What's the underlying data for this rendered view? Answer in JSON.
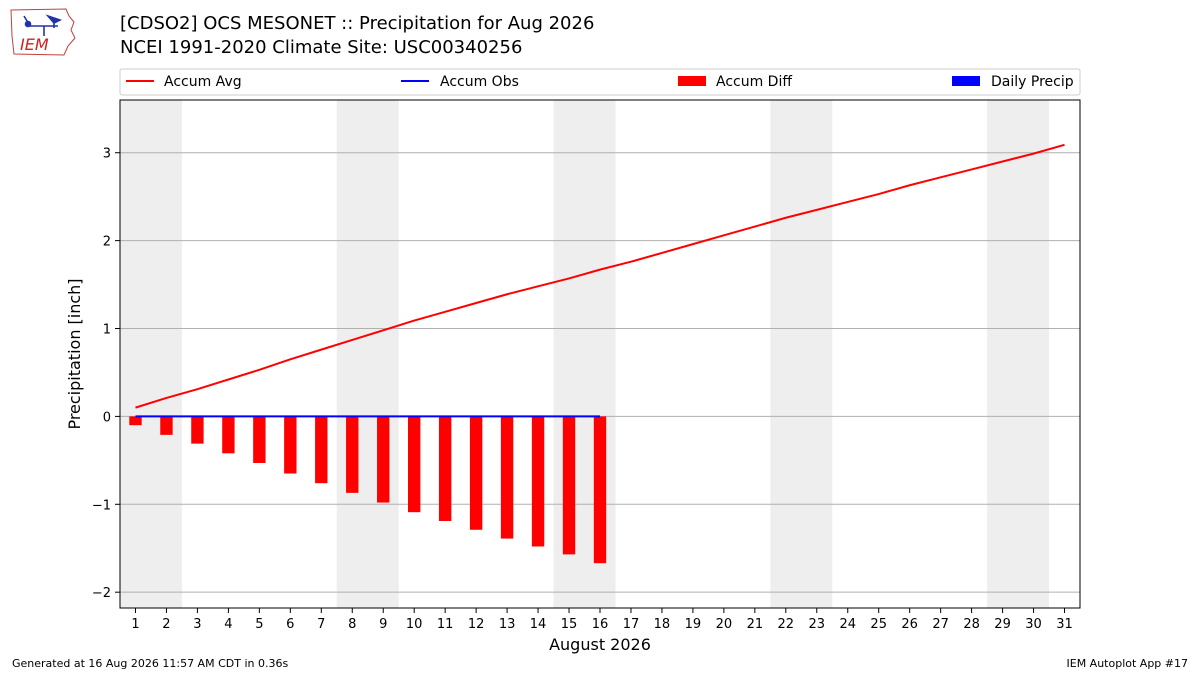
{
  "header": {
    "logo_text": "IEM",
    "title_line1": "[CDSO2] OCS MESONET :: Precipitation for Aug 2026",
    "title_line2": "NCEI 1991-2020 Climate Site: USC00340256"
  },
  "footer": {
    "generated": "Generated at 16 Aug 2026 11:57 AM CDT in 0.36s",
    "app": "IEM Autoplot App #17"
  },
  "colors": {
    "accum_avg": "#ff0000",
    "accum_obs": "#0000ff",
    "accum_diff": "#ff0000",
    "daily_precip": "#0000ff",
    "weekend_band": "#eeeeee",
    "grid": "#b0b0b0"
  },
  "chart_data": {
    "type": "bar",
    "xlabel": "August 2026",
    "ylabel": "Precipitation [inch]",
    "xlim": [
      0.5,
      31.5
    ],
    "ylim": [
      -2.18,
      3.6
    ],
    "x_ticks": [
      1,
      2,
      3,
      4,
      5,
      6,
      7,
      8,
      9,
      10,
      11,
      12,
      13,
      14,
      15,
      16,
      17,
      18,
      19,
      20,
      21,
      22,
      23,
      24,
      25,
      26,
      27,
      28,
      29,
      30,
      31
    ],
    "y_ticks": [
      -2,
      -1,
      0,
      1,
      2,
      3
    ],
    "y_tick_labels": [
      "−2",
      "−1",
      "0",
      "1",
      "2",
      "3"
    ],
    "grid": "horizontal",
    "legend_position": "top, above plot",
    "legend": [
      {
        "label": "Accum Avg",
        "kind": "line",
        "color": "#ff0000"
      },
      {
        "label": "Accum Obs",
        "kind": "line",
        "color": "#0000ff"
      },
      {
        "label": "Accum Diff",
        "kind": "bar",
        "color": "#ff0000"
      },
      {
        "label": "Daily Precip",
        "kind": "bar",
        "color": "#0000ff"
      }
    ],
    "weekend_days": [
      1,
      2,
      8,
      9,
      15,
      16,
      22,
      23,
      29,
      30
    ],
    "accum_avg": {
      "days": [
        1,
        2,
        3,
        4,
        5,
        6,
        7,
        8,
        9,
        10,
        11,
        12,
        13,
        14,
        15,
        16,
        17,
        18,
        19,
        20,
        21,
        22,
        23,
        24,
        25,
        26,
        27,
        28,
        29,
        30,
        31
      ],
      "values": [
        0.1,
        0.21,
        0.31,
        0.42,
        0.53,
        0.65,
        0.76,
        0.87,
        0.98,
        1.09,
        1.19,
        1.29,
        1.39,
        1.48,
        1.57,
        1.67,
        1.76,
        1.86,
        1.96,
        2.06,
        2.16,
        2.26,
        2.35,
        2.44,
        2.53,
        2.63,
        2.72,
        2.81,
        2.9,
        2.99,
        3.09
      ]
    },
    "accum_obs": {
      "days": [
        1,
        2,
        3,
        4,
        5,
        6,
        7,
        8,
        9,
        10,
        11,
        12,
        13,
        14,
        15,
        16
      ],
      "values": [
        0,
        0,
        0,
        0,
        0,
        0,
        0,
        0,
        0,
        0,
        0,
        0,
        0,
        0,
        0,
        0
      ]
    },
    "accum_diff": {
      "days": [
        1,
        2,
        3,
        4,
        5,
        6,
        7,
        8,
        9,
        10,
        11,
        12,
        13,
        14,
        15,
        16
      ],
      "values": [
        -0.1,
        -0.21,
        -0.31,
        -0.42,
        -0.53,
        -0.65,
        -0.76,
        -0.87,
        -0.98,
        -1.09,
        -1.19,
        -1.29,
        -1.39,
        -1.48,
        -1.57,
        -1.67
      ]
    },
    "daily_precip": {
      "days": [
        1,
        2,
        3,
        4,
        5,
        6,
        7,
        8,
        9,
        10,
        11,
        12,
        13,
        14,
        15,
        16
      ],
      "values": [
        0,
        0,
        0,
        0,
        0,
        0,
        0,
        0,
        0,
        0,
        0,
        0,
        0,
        0,
        0,
        0
      ]
    }
  }
}
